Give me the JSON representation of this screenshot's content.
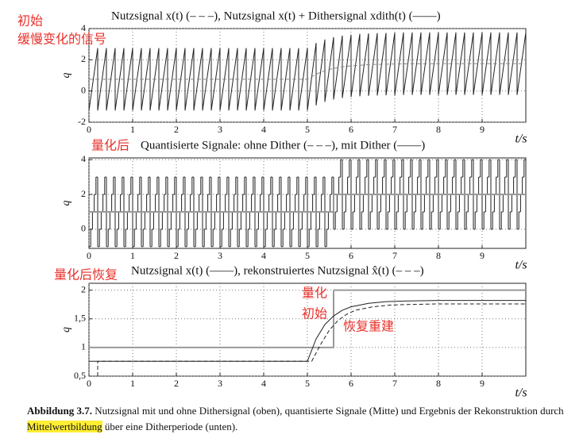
{
  "chart_data": [
    {
      "type": "line",
      "title": "Nutzsignal x(t) (– – –),  Nutzsignal x(t) + Dithersignal xdith(t) (——)",
      "xlabel": "t/s",
      "ylabel": "q",
      "xlim": [
        0,
        10
      ],
      "xticks": [
        0,
        1,
        2,
        3,
        4,
        5,
        6,
        7,
        8,
        9
      ],
      "ylim": [
        -2,
        4
      ],
      "yticks": [
        -2,
        0,
        2,
        4
      ],
      "grid": true,
      "annotations": [
        "初始",
        "缓慢变化的信号"
      ],
      "series": [
        {
          "color": "#222222",
          "x": [
            0,
            0.2,
            0.2,
            0.4,
            0.4,
            0.6,
            0.6,
            0.8,
            0.8,
            1,
            1,
            1.2,
            1.2,
            1.4,
            1.4,
            1.6,
            1.6,
            1.8,
            1.8,
            2,
            2,
            2.2,
            2.2,
            2.4,
            2.4,
            2.6,
            2.6,
            2.8,
            2.8,
            3,
            3,
            3.2,
            3.2,
            3.4,
            3.4,
            3.6,
            3.6,
            3.8,
            3.8,
            4,
            4,
            4.2,
            4.2,
            4.4,
            4.4,
            4.6,
            4.6,
            4.8,
            4.8,
            5,
            5,
            5.2,
            5.2,
            5.4,
            5.4,
            5.6,
            5.6,
            5.8,
            5.8,
            6,
            6,
            6.2,
            6.2,
            6.4,
            6.4,
            6.6,
            6.6,
            6.8,
            6.8,
            7,
            7,
            7.2,
            7.2,
            7.4,
            7.4,
            7.6,
            7.6,
            7.8,
            7.8,
            8,
            8,
            8.2,
            8.2,
            8.4,
            8.4,
            8.6,
            8.6,
            8.8,
            8.8,
            9,
            9,
            9.2,
            9.2,
            9.4,
            9.4,
            9.6,
            9.6,
            9.8,
            9.8,
            10
          ],
          "values": [
            -1.25,
            2.75,
            -1.25,
            2.75,
            -1.25,
            2.75,
            -1.25,
            2.75,
            -1.25,
            2.75,
            -1.25,
            2.75,
            -1.25,
            2.75,
            -1.25,
            2.75,
            -1.25,
            2.75,
            -1.25,
            2.75,
            -1.25,
            2.75,
            -1.25,
            2.75,
            -1.25,
            2.75,
            -1.25,
            2.75,
            -1.25,
            2.75,
            -1.25,
            2.75,
            -1.25,
            2.75,
            -1.25,
            2.75,
            -1.25,
            2.75,
            -1.25,
            2.75,
            -1.25,
            2.75,
            -1.25,
            2.75,
            -1.25,
            2.75,
            -1.25,
            2.75,
            -1.25,
            2.75,
            -1.25,
            3.08,
            -0.92,
            3.3,
            -0.7,
            3.45,
            -0.55,
            3.55,
            -0.45,
            3.61,
            -0.39,
            3.66,
            -0.34,
            3.69,
            -0.31,
            3.71,
            -0.29,
            3.72,
            -0.28,
            3.73,
            -0.27,
            3.75,
            -0.25,
            3.75,
            -0.25,
            3.75,
            -0.25,
            3.75,
            -0.25,
            3.75,
            -0.25,
            3.75,
            -0.25,
            3.75,
            -0.25,
            3.75,
            -0.25,
            3.75,
            -0.25,
            3.75,
            -0.25,
            3.75,
            -0.25,
            3.75,
            -0.25,
            3.75,
            -0.25,
            3.75,
            -0.25,
            3.75
          ]
        },
        {
          "color": "#888888",
          "dash": true,
          "x": [
            0,
            5,
            5.2,
            5.4,
            5.6,
            5.8,
            6,
            6.4,
            6.8,
            7.2,
            8,
            10
          ],
          "values": [
            0.75,
            0.75,
            1.08,
            1.3,
            1.45,
            1.55,
            1.61,
            1.69,
            1.72,
            1.74,
            1.75,
            1.75
          ]
        }
      ]
    },
    {
      "type": "line",
      "title": "Quantisierte Signale: ohne Dither (– – –), mit Dither (——)",
      "xlabel": "t/s",
      "ylabel": "q",
      "xlim": [
        0,
        10
      ],
      "xticks": [
        0,
        1,
        2,
        3,
        4,
        5,
        6,
        7,
        8,
        9
      ],
      "ylim": [
        -1.1,
        4.1
      ],
      "yticks": [
        0,
        2,
        4
      ],
      "grid": true,
      "annotations": [
        "量化后"
      ],
      "series": [
        {
          "color": "#222222",
          "step": true,
          "x": [
            0,
            0.04,
            0.08,
            0.12,
            0.16,
            0.2,
            0.24,
            0.28,
            0.32,
            0.36,
            0.4,
            0.44,
            0.48,
            0.52,
            0.56,
            0.6,
            0.64,
            0.68,
            0.72,
            0.76,
            0.8,
            0.84,
            0.88,
            0.92,
            0.96,
            1,
            1.04,
            1.08,
            1.12,
            1.16,
            1.2,
            1.24,
            1.28,
            1.32,
            1.36,
            1.4,
            1.44,
            1.48,
            1.52,
            1.56,
            1.6,
            1.64,
            1.68,
            1.72,
            1.76,
            1.8,
            1.84,
            1.88,
            1.92,
            1.96,
            2,
            2.04,
            2.08,
            2.12,
            2.16,
            2.2,
            2.24,
            2.28,
            2.32,
            2.36,
            2.4,
            2.44,
            2.48,
            2.52,
            2.56,
            2.6,
            2.64,
            2.68,
            2.72,
            2.76,
            2.8,
            2.84,
            2.88,
            2.92,
            2.96,
            3,
            3.04,
            3.08,
            3.12,
            3.16,
            3.2,
            3.24,
            3.28,
            3.32,
            3.36,
            3.4,
            3.44,
            3.48,
            3.52,
            3.56,
            3.6,
            3.64,
            3.68,
            3.72,
            3.76,
            3.8,
            3.84,
            3.88,
            3.92,
            3.96,
            4,
            4.04,
            4.08,
            4.12,
            4.16,
            4.2,
            4.24,
            4.28,
            4.32,
            4.36,
            4.4,
            4.44,
            4.48,
            4.52,
            4.56,
            4.6,
            4.64,
            4.68,
            4.72,
            4.76,
            4.8,
            4.84,
            4.88,
            4.92,
            4.96,
            5,
            5.04,
            5.08,
            5.12,
            5.16,
            5.2,
            5.24,
            5.28,
            5.32,
            5.36,
            5.4,
            5.44,
            5.48,
            5.52,
            5.56,
            5.6,
            5.64,
            5.68,
            5.72,
            5.76,
            5.8,
            5.84,
            5.88,
            5.92,
            5.96,
            6,
            6.04,
            6.08,
            6.12,
            6.16,
            6.2,
            6.24,
            6.28,
            6.32,
            6.36,
            6.4,
            6.44,
            6.48,
            6.52,
            6.56,
            6.6,
            6.64,
            6.68,
            6.72,
            6.76,
            6.8,
            6.84,
            6.88,
            6.92,
            6.96,
            7,
            7.04,
            7.08,
            7.12,
            7.16,
            7.2,
            7.24,
            7.28,
            7.32,
            7.36,
            7.4,
            7.44,
            7.48,
            7.52,
            7.56,
            7.6,
            7.64,
            7.68,
            7.72,
            7.76,
            7.8,
            7.84,
            7.88,
            7.92,
            7.96,
            8,
            8.04,
            8.08,
            8.12,
            8.16,
            8.2,
            8.24,
            8.28,
            8.32,
            8.36,
            8.4,
            8.44,
            8.48,
            8.52,
            8.56,
            8.6,
            8.64,
            8.68,
            8.72,
            8.76,
            8.8,
            8.84,
            8.88,
            8.92,
            8.96,
            9,
            9.04,
            9.08,
            9.12,
            9.16,
            9.2,
            9.24,
            9.28,
            9.32,
            9.36,
            9.4,
            9.44,
            9.48,
            9.52,
            9.56,
            9.6,
            9.64,
            9.68,
            9.72,
            9.76,
            9.8,
            9.84,
            9.88,
            9.92,
            9.96
          ],
          "values": [
            -1,
            0,
            1,
            2,
            3,
            -1,
            0,
            1,
            2,
            3,
            -1,
            0,
            1,
            2,
            3,
            -1,
            0,
            1,
            2,
            3,
            -1,
            0,
            1,
            2,
            3,
            -1,
            0,
            1,
            2,
            3,
            -1,
            0,
            1,
            2,
            3,
            -1,
            0,
            1,
            2,
            3,
            -1,
            0,
            1,
            2,
            3,
            -1,
            0,
            1,
            2,
            3,
            -1,
            0,
            1,
            2,
            3,
            -1,
            0,
            1,
            2,
            3,
            -1,
            0,
            1,
            2,
            3,
            -1,
            0,
            1,
            2,
            3,
            -1,
            0,
            1,
            2,
            3,
            -1,
            0,
            1,
            2,
            3,
            -1,
            0,
            1,
            2,
            3,
            -1,
            0,
            1,
            2,
            3,
            -1,
            0,
            1,
            2,
            3,
            -1,
            0,
            1,
            2,
            3,
            -1,
            0,
            1,
            2,
            3,
            -1,
            0,
            1,
            2,
            3,
            -1,
            0,
            1,
            2,
            3,
            -1,
            0,
            1,
            2,
            3,
            -1,
            0,
            1,
            2,
            3,
            -1,
            0,
            1,
            2,
            3,
            -1,
            0,
            1,
            2,
            3,
            -1,
            0,
            1,
            2,
            3,
            0,
            1,
            2,
            3,
            4,
            0,
            1,
            2,
            3,
            4,
            0,
            1,
            2,
            3,
            4,
            0,
            1,
            2,
            3,
            4,
            0,
            1,
            2,
            3,
            4,
            0,
            1,
            2,
            3,
            4,
            0,
            1,
            2,
            3,
            4,
            0,
            1,
            2,
            3,
            4,
            0,
            1,
            2,
            3,
            4,
            0,
            1,
            2,
            3,
            4,
            0,
            1,
            2,
            3,
            4,
            0,
            1,
            2,
            3,
            4,
            0,
            1,
            2,
            3,
            4,
            0,
            1,
            2,
            3,
            4,
            0,
            1,
            2,
            3,
            4,
            0,
            1,
            2,
            3,
            4,
            0,
            1,
            2,
            3,
            4,
            0,
            1,
            2,
            3,
            4,
            0,
            1,
            2,
            3,
            4,
            0,
            1,
            2,
            3,
            4,
            0,
            1,
            2,
            3,
            4,
            0,
            1,
            2,
            3,
            4
          ]
        },
        {
          "color": "#999999",
          "step": true,
          "width": 2,
          "x": [
            0,
            5.6
          ],
          "values": [
            1,
            2
          ]
        }
      ]
    },
    {
      "type": "line",
      "title": "Nutzsignal x(t) (——),  rekonstruiertes Nutzsignal x̂(t) (– – –)",
      "xlabel": "t/s",
      "ylabel": "q",
      "xlim": [
        0,
        10
      ],
      "xticks": [
        0,
        1,
        2,
        3,
        4,
        5,
        6,
        7,
        8,
        9
      ],
      "ylim": [
        0.5,
        2.12
      ],
      "yticks": [
        {
          "value": 0.5,
          "label": "0,5"
        },
        1,
        {
          "value": 1.5,
          "label": "1,5"
        },
        2
      ],
      "grid": true,
      "annotations": [
        "量化后恢复",
        "量化",
        "初始",
        "恢复重建"
      ],
      "series": [
        {
          "color": "#999999",
          "step": true,
          "width": 2,
          "x": [
            0,
            5.6
          ],
          "values": [
            1,
            2
          ]
        },
        {
          "color": "#222222",
          "x": [
            0,
            5,
            5.2,
            5.4,
            5.6,
            5.8,
            6,
            6.4,
            6.8,
            7.2,
            8,
            10
          ],
          "values": [
            0.76,
            0.76,
            1.15,
            1.4,
            1.55,
            1.65,
            1.71,
            1.77,
            1.8,
            1.81,
            1.82,
            1.82
          ]
        },
        {
          "color": "#222222",
          "dash": true,
          "x": [
            0.2,
            0.2,
            5.1,
            5.3,
            5.5,
            5.7,
            5.9,
            6.1,
            6.5,
            6.9,
            7.3,
            8,
            10
          ],
          "values": [
            0.5,
            0.76,
            0.76,
            1.05,
            1.3,
            1.47,
            1.58,
            1.65,
            1.71,
            1.74,
            1.75,
            1.76,
            1.76
          ]
        }
      ]
    }
  ],
  "caption": {
    "label": "Abbildung 3.7.",
    "text": "Nutzsignal mit und ohne Dithersignal (oben), quantisierte Signale (Mitte) und Ergebnis der Rekonstruktion durch",
    "highlight": "Mittelwertbildung",
    "end": "über eine Ditherperiode (unten)."
  }
}
